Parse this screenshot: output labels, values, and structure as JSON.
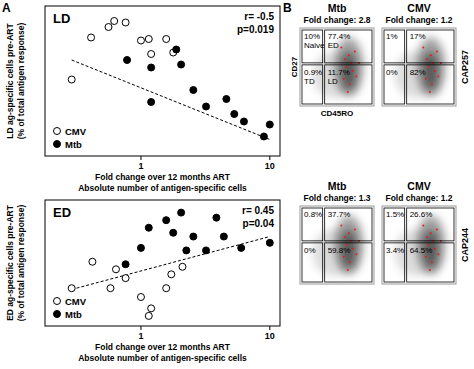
{
  "panel_labels": [
    "A",
    "B"
  ],
  "chart_data": [
    {
      "type": "scatter",
      "title": "LD",
      "annotations": [
        "r= -0.5",
        "p=0.019"
      ],
      "y_label": [
        "LD ag-specific cells pre-ART",
        "(% of total antigen response)"
      ],
      "x_label": [
        "Fold change over 12 months ART",
        "Absolute number of antigen-specific cells"
      ],
      "log": "x",
      "xlim": [
        0.18,
        12
      ],
      "xticks": [
        1,
        10
      ],
      "ylim": [
        0,
        100
      ],
      "tick_labels": "x",
      "legend": "lower left",
      "series": [
        {
          "name": "CMV",
          "color": "#ffffff",
          "marker": "circle-open",
          "x": [
            0.29,
            0.41,
            0.56,
            0.62,
            0.76,
            1.0,
            1.15,
            1.2,
            1.57,
            1.78
          ],
          "values": [
            51,
            79,
            86,
            90,
            89,
            77,
            78,
            68,
            78,
            69
          ]
        },
        {
          "name": "Mtb",
          "color": "#000000",
          "marker": "circle",
          "x": [
            0.78,
            1.2,
            1.2,
            1.88,
            2.05,
            2.55,
            3.2,
            4.6,
            5.3,
            6.3,
            9,
            10
          ],
          "values": [
            64,
            59,
            36,
            71,
            61,
            44,
            33,
            38,
            28,
            23,
            13,
            21
          ]
        }
      ],
      "trend": {
        "x": [
          0.29,
          10
        ],
        "values": [
          64,
          11
        ]
      }
    },
    {
      "type": "scatter",
      "title": "ED",
      "annotations": [
        "r= 0.45",
        "p=0.04"
      ],
      "y_label": [
        "ED ag-specific cells pre-ART",
        "(% of total antigen response)"
      ],
      "x_label": [
        "Fold change over 12 months ART",
        "Absolute number of antigen-specific cells"
      ],
      "log": "x",
      "xlim": [
        0.18,
        12
      ],
      "xticks": [
        1,
        10
      ],
      "ylim": [
        0,
        100
      ],
      "tick_labels": "x",
      "legend": "lower left",
      "series": [
        {
          "name": "CMV",
          "color": "#ffffff",
          "marker": "circle-open",
          "x": [
            0.29,
            0.42,
            0.58,
            0.64,
            0.76,
            1.0,
            1.15,
            1.2,
            1.57,
            1.72,
            2.1
          ],
          "values": [
            30,
            51,
            30,
            45,
            38,
            23,
            8,
            14,
            30,
            41,
            47
          ]
        },
        {
          "name": "Mtb",
          "color": "#000000",
          "marker": "circle",
          "x": [
            0.76,
            1.0,
            1.15,
            1.57,
            1.78,
            2.05,
            2.25,
            2.55,
            3.2,
            3.85,
            4.4,
            6.0,
            10
          ],
          "values": [
            49,
            62,
            78,
            84,
            74,
            90,
            60,
            71,
            60,
            86,
            71,
            62,
            66
          ]
        }
      ],
      "trend": {
        "x": [
          0.29,
          10
        ],
        "values": [
          29,
          71
        ]
      }
    },
    {
      "type": "quadrant",
      "title": "Mtb",
      "subtitle": "Fold change: 2.8",
      "x_label": "CD45RO",
      "y_label": "CD27",
      "categories": [
        "Naive",
        "ED",
        "TD",
        "LD"
      ],
      "values": [
        10,
        77.4,
        0.9,
        11.7
      ],
      "value_labels": [
        "10%",
        "77.4%",
        "0.9%",
        "11.7%"
      ],
      "data_labels": true
    },
    {
      "type": "quadrant",
      "title": "CMV",
      "subtitle": "Fold change: 1.2",
      "annotations": [
        "CAP257"
      ],
      "values": [
        1,
        17,
        0,
        82
      ],
      "value_labels": [
        "1%",
        "17%",
        "0%",
        "82%"
      ],
      "data_labels": true
    },
    {
      "type": "quadrant",
      "title": "Mtb",
      "subtitle": "Fold change: 1.3",
      "values": [
        0.8,
        37.7,
        0,
        59.8
      ],
      "value_labels": [
        "0.8%",
        "37.7%",
        "0%",
        "59.8%"
      ],
      "data_labels": true
    },
    {
      "type": "quadrant",
      "title": "CMV",
      "subtitle": "Fold change: 1.2",
      "annotations": [
        "CAP244"
      ],
      "values": [
        1.5,
        26.6,
        3.4,
        64.5
      ],
      "value_labels": [
        "1.5%",
        "26.6%",
        "3.4%",
        "64.5%"
      ],
      "data_labels": true
    }
  ]
}
